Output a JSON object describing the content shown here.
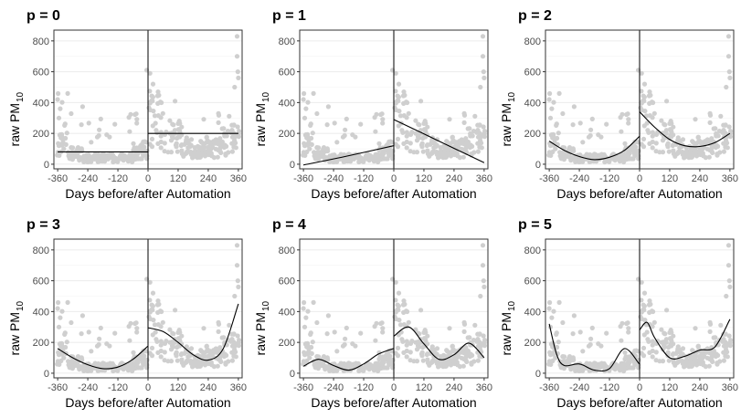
{
  "chart_data": [
    {
      "type": "scatter",
      "title": "p = 0",
      "xlabel": "Days before/after Automation",
      "ylabel": "raw PM",
      "ylabel_sub": "10",
      "xlim": [
        -375,
        375
      ],
      "ylim": [
        -30,
        870
      ],
      "xticks": [
        -360,
        -240,
        -120,
        0,
        120,
        240,
        360
      ],
      "yticks": [
        0,
        200,
        400,
        600,
        800
      ],
      "grid": true,
      "cutoff_x": 0,
      "series": [
        {
          "x": [
            -360,
            -180,
            -90,
            -1
          ],
          "y": [
            80,
            80,
            80,
            80
          ]
        },
        {
          "x": [
            0,
            120,
            240,
            360
          ],
          "y": [
            200,
            200,
            200,
            200
          ]
        }
      ]
    },
    {
      "type": "scatter",
      "title": "p = 1",
      "xlabel": "Days before/after Automation",
      "ylabel": "raw PM",
      "ylabel_sub": "10",
      "xlim": [
        -375,
        375
      ],
      "ylim": [
        -30,
        870
      ],
      "xticks": [
        -360,
        -240,
        -120,
        0,
        120,
        240,
        360
      ],
      "yticks": [
        0,
        200,
        400,
        600,
        800
      ],
      "grid": true,
      "cutoff_x": 0,
      "series": [
        {
          "x": [
            -360,
            -180,
            -1
          ],
          "y": [
            -5,
            55,
            120
          ]
        },
        {
          "x": [
            0,
            180,
            360
          ],
          "y": [
            290,
            150,
            10
          ]
        }
      ]
    },
    {
      "type": "scatter",
      "title": "p = 2",
      "xlabel": "Days before/after Automation",
      "ylabel": "raw PM",
      "ylabel_sub": "10",
      "xlim": [
        -375,
        375
      ],
      "ylim": [
        -30,
        870
      ],
      "xticks": [
        -360,
        -240,
        -120,
        0,
        120,
        240,
        360
      ],
      "yticks": [
        0,
        200,
        400,
        600,
        800
      ],
      "grid": true,
      "cutoff_x": 0,
      "series": [
        {
          "x": [
            -360,
            -300,
            -240,
            -180,
            -120,
            -60,
            -1
          ],
          "y": [
            150,
            90,
            50,
            30,
            45,
            90,
            180
          ]
        },
        {
          "x": [
            0,
            60,
            120,
            180,
            240,
            300,
            360
          ],
          "y": [
            340,
            240,
            160,
            120,
            115,
            140,
            200
          ]
        }
      ]
    },
    {
      "type": "scatter",
      "title": "p = 3",
      "xlabel": "Days before/after Automation",
      "ylabel": "raw PM",
      "ylabel_sub": "10",
      "xlim": [
        -375,
        375
      ],
      "ylim": [
        -30,
        870
      ],
      "xticks": [
        -360,
        -240,
        -120,
        0,
        120,
        240,
        360
      ],
      "yticks": [
        0,
        200,
        400,
        600,
        800
      ],
      "grid": true,
      "cutoff_x": 0,
      "series": [
        {
          "x": [
            -360,
            -300,
            -240,
            -180,
            -120,
            -60,
            -1
          ],
          "y": [
            160,
            100,
            55,
            30,
            40,
            90,
            175
          ]
        },
        {
          "x": [
            0,
            60,
            120,
            180,
            240,
            300,
            360
          ],
          "y": [
            295,
            270,
            200,
            120,
            85,
            160,
            450
          ]
        }
      ]
    },
    {
      "type": "scatter",
      "title": "p = 4",
      "xlabel": "Days before/after Automation",
      "ylabel": "raw PM",
      "ylabel_sub": "10",
      "xlim": [
        -375,
        375
      ],
      "ylim": [
        -30,
        870
      ],
      "xticks": [
        -360,
        -240,
        -120,
        0,
        120,
        240,
        360
      ],
      "yticks": [
        0,
        200,
        400,
        600,
        800
      ],
      "grid": true,
      "cutoff_x": 0,
      "series": [
        {
          "x": [
            -360,
            -300,
            -240,
            -180,
            -120,
            -60,
            -1
          ],
          "y": [
            45,
            90,
            50,
            20,
            60,
            125,
            160
          ]
        },
        {
          "x": [
            0,
            60,
            120,
            180,
            240,
            300,
            360
          ],
          "y": [
            240,
            300,
            190,
            90,
            120,
            195,
            100
          ]
        }
      ]
    },
    {
      "type": "scatter",
      "title": "p = 5",
      "xlabel": "Days before/after Automation",
      "ylabel": "raw PM",
      "ylabel_sub": "10",
      "xlim": [
        -375,
        375
      ],
      "ylim": [
        -30,
        870
      ],
      "xticks": [
        -360,
        -240,
        -120,
        0,
        120,
        240,
        360
      ],
      "yticks": [
        0,
        200,
        400,
        600,
        800
      ],
      "grid": true,
      "cutoff_x": 0,
      "series": [
        {
          "x": [
            -360,
            -330,
            -300,
            -240,
            -180,
            -120,
            -60,
            -1
          ],
          "y": [
            320,
            120,
            50,
            60,
            20,
            30,
            160,
            60
          ]
        },
        {
          "x": [
            0,
            30,
            60,
            120,
            180,
            240,
            300,
            360
          ],
          "y": [
            280,
            330,
            230,
            100,
            110,
            150,
            170,
            350
          ]
        }
      ]
    }
  ]
}
